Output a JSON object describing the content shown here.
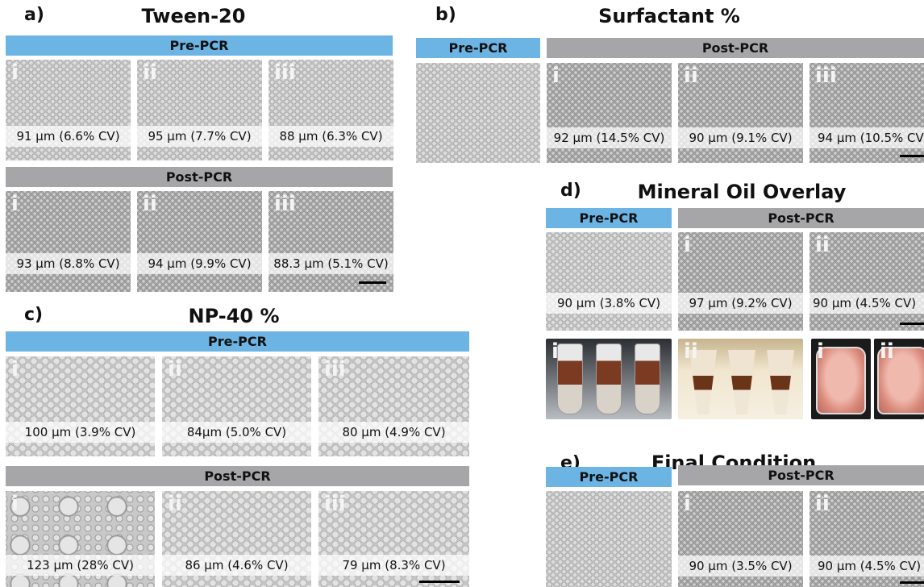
{
  "colors": {
    "pre_bar": "#6cb4e4",
    "post_bar": "#a6a6a8",
    "scale_bar": "#000000"
  },
  "panels": {
    "a": {
      "label": "a)",
      "title": "Tween-20",
      "pre": {
        "bar": "Pre-PCR",
        "images": [
          {
            "numeral": "i",
            "caption": "91 µm (6.6% CV)"
          },
          {
            "numeral": "ii",
            "caption": "95 µm (7.7% CV)"
          },
          {
            "numeral": "iii",
            "caption": "88 µm (6.3% CV)"
          }
        ]
      },
      "post": {
        "bar": "Post-PCR",
        "images": [
          {
            "numeral": "i",
            "caption": "93 µm (8.8% CV)"
          },
          {
            "numeral": "ii",
            "caption": "94 µm (9.9% CV)"
          },
          {
            "numeral": "iii",
            "caption": "88.3 µm (5.1% CV)"
          }
        ]
      }
    },
    "b": {
      "label": "b)",
      "title": "Surfactant %",
      "pre_bar": "Pre-PCR",
      "post_bar": "Post-PCR",
      "images": [
        {
          "numeral": "i",
          "caption": "92 µm (14.5% CV)"
        },
        {
          "numeral": "ii",
          "caption": "90 µm (9.1% CV)"
        },
        {
          "numeral": "iii",
          "caption": "94 µm (10.5% CV)"
        }
      ]
    },
    "c": {
      "label": "c)",
      "title": "NP-40 %",
      "pre": {
        "bar": "Pre-PCR",
        "images": [
          {
            "numeral": "i",
            "caption": "100 µm (3.9% CV)"
          },
          {
            "numeral": "ii",
            "caption": "84µm (5.0% CV)"
          },
          {
            "numeral": "iii",
            "caption": "80 µm (4.9% CV)"
          }
        ]
      },
      "post": {
        "bar": "Post-PCR",
        "images": [
          {
            "numeral": "i",
            "caption": "123 µm (28% CV)"
          },
          {
            "numeral": "ii",
            "caption": "86 µm (4.6% CV)"
          },
          {
            "numeral": "iii",
            "caption": "79 µm (8.3% CV)"
          }
        ]
      }
    },
    "d": {
      "label": "d)",
      "title": "Mineral Oil Overlay",
      "pre_bar": "Pre-PCR",
      "post_bar": "Post-PCR",
      "pre_caption": "90 µm (3.8% CV)",
      "images": [
        {
          "numeral": "i",
          "caption": "97 µm (9.2% CV)"
        },
        {
          "numeral": "ii",
          "caption": "90 µm (4.5% CV)"
        }
      ],
      "photos": [
        {
          "numeral": "i"
        },
        {
          "numeral": "ii"
        },
        {
          "numeral": "i"
        },
        {
          "numeral": "ii"
        }
      ]
    },
    "e": {
      "label": "e)",
      "title": "Final Condition",
      "pre_bar": "Pre-PCR",
      "post_bar": "Post-PCR",
      "images": [
        {
          "numeral": "i",
          "caption": "90 µm (3.5% CV)"
        },
        {
          "numeral": "ii",
          "caption": "90 µm (4.5% CV)"
        }
      ]
    }
  }
}
